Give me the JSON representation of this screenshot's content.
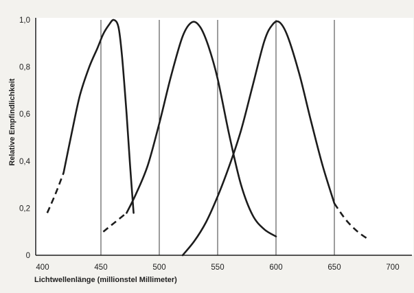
{
  "chart_data": {
    "type": "line",
    "title": "",
    "xlabel": "Lichtwellenlänge (millionstel Millimeter)",
    "ylabel": "Relative Empfindlichkeit",
    "xlim": [
      400,
      700
    ],
    "ylim": [
      0,
      1
    ],
    "x_ticks": [
      "400",
      "450",
      "500",
      "550",
      "600",
      "650",
      "700"
    ],
    "y_ticks": [
      "0",
      "0,2",
      "0,4",
      "0,6",
      "0,8",
      "1,0"
    ],
    "vertical_gridlines_at": [
      450,
      500,
      550,
      600,
      650
    ],
    "legend": "none",
    "line_color": "#1c1c1c",
    "series": [
      {
        "solid": {
          "x": [
            418,
            425,
            432,
            440,
            447,
            452,
            457,
            461,
            465,
            468,
            472,
            475,
            478
          ],
          "y": [
            0.35,
            0.52,
            0.68,
            0.8,
            0.88,
            0.94,
            0.98,
            1.0,
            0.97,
            0.85,
            0.6,
            0.38,
            0.18
          ]
        },
        "dashed": {
          "x": [
            404,
            411,
            418
          ],
          "y": [
            0.18,
            0.26,
            0.35
          ]
        }
      },
      {
        "solid": {
          "x": [
            472,
            480,
            490,
            500,
            510,
            520,
            528,
            535,
            542,
            550,
            560,
            570,
            580,
            590,
            600
          ],
          "y": [
            0.18,
            0.26,
            0.38,
            0.56,
            0.76,
            0.93,
            0.99,
            0.97,
            0.89,
            0.75,
            0.51,
            0.3,
            0.17,
            0.11,
            0.08
          ]
        },
        "dashed": {
          "x": [
            452,
            462,
            472
          ],
          "y": [
            0.1,
            0.14,
            0.18
          ]
        }
      },
      {
        "solid": {
          "x": [
            520,
            530,
            540,
            550,
            560,
            570,
            580,
            590,
            597,
            603,
            610,
            620,
            630,
            640,
            650
          ],
          "y": [
            0.0,
            0.06,
            0.14,
            0.25,
            0.38,
            0.53,
            0.72,
            0.91,
            0.98,
            0.99,
            0.93,
            0.77,
            0.57,
            0.38,
            0.22
          ]
        },
        "dashed": {
          "x": [
            650,
            660,
            670,
            680
          ],
          "y": [
            0.22,
            0.15,
            0.1,
            0.065
          ]
        }
      }
    ]
  }
}
